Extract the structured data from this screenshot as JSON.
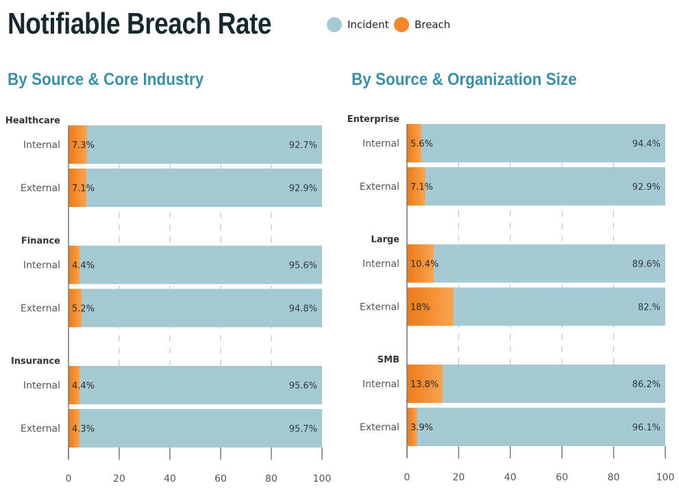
{
  "title": "Notifiable Breach Rate",
  "legend": [
    {
      "label": "Incident",
      "color": "#a5cad4"
    },
    {
      "label": "Breach",
      "color": "#f5872a"
    }
  ],
  "chart_data": [
    {
      "type": "bar",
      "stacked": true,
      "orientation": "horizontal",
      "title": "By Source & Core Industry",
      "xlim": [
        0,
        100
      ],
      "xticks": [
        0,
        20,
        40,
        60,
        80,
        100
      ],
      "grid": "dashed vertical",
      "groups": [
        {
          "name": "Healthcare",
          "rows": [
            {
              "label": "Internal",
              "breach": 7.3,
              "incident": 92.7,
              "breach_label": "7.3%",
              "incident_label": "92.7%"
            },
            {
              "label": "External",
              "breach": 7.1,
              "incident": 92.9,
              "breach_label": "7.1%",
              "incident_label": "92.9%"
            }
          ]
        },
        {
          "name": "Finance",
          "rows": [
            {
              "label": "Internal",
              "breach": 4.4,
              "incident": 95.6,
              "breach_label": "4.4%",
              "incident_label": "95.6%"
            },
            {
              "label": "External",
              "breach": 5.2,
              "incident": 94.8,
              "breach_label": "5.2%",
              "incident_label": "94.8%"
            }
          ]
        },
        {
          "name": "Insurance",
          "rows": [
            {
              "label": "Internal",
              "breach": 4.4,
              "incident": 95.6,
              "breach_label": "4.4%",
              "incident_label": "95.6%"
            },
            {
              "label": "External",
              "breach": 4.3,
              "incident": 95.7,
              "breach_label": "4.3%",
              "incident_label": "95.7%"
            }
          ]
        }
      ]
    },
    {
      "type": "bar",
      "stacked": true,
      "orientation": "horizontal",
      "title": "By Source & Organization Size",
      "xlim": [
        0,
        100
      ],
      "xticks": [
        0,
        20,
        40,
        60,
        80,
        100
      ],
      "grid": "dashed vertical",
      "groups": [
        {
          "name": "Enterprise",
          "rows": [
            {
              "label": "Internal",
              "breach": 5.6,
              "incident": 94.4,
              "breach_label": "5.6%",
              "incident_label": "94.4%"
            },
            {
              "label": "External",
              "breach": 7.1,
              "incident": 92.9,
              "breach_label": "7.1%",
              "incident_label": "92.9%"
            }
          ]
        },
        {
          "name": "Large",
          "rows": [
            {
              "label": "Internal",
              "breach": 10.4,
              "incident": 89.6,
              "breach_label": "10.4%",
              "incident_label": "89.6%"
            },
            {
              "label": "External",
              "breach": 18,
              "incident": 82,
              "breach_label": "18%",
              "incident_label": "82.%"
            }
          ]
        },
        {
          "name": "SMB",
          "rows": [
            {
              "label": "Internal",
              "breach": 13.8,
              "incident": 86.2,
              "breach_label": "13.8%",
              "incident_label": "86.2%"
            },
            {
              "label": "External",
              "breach": 3.9,
              "incident": 96.1,
              "breach_label": "3.9%",
              "incident_label": "96.1%"
            }
          ]
        }
      ]
    }
  ]
}
